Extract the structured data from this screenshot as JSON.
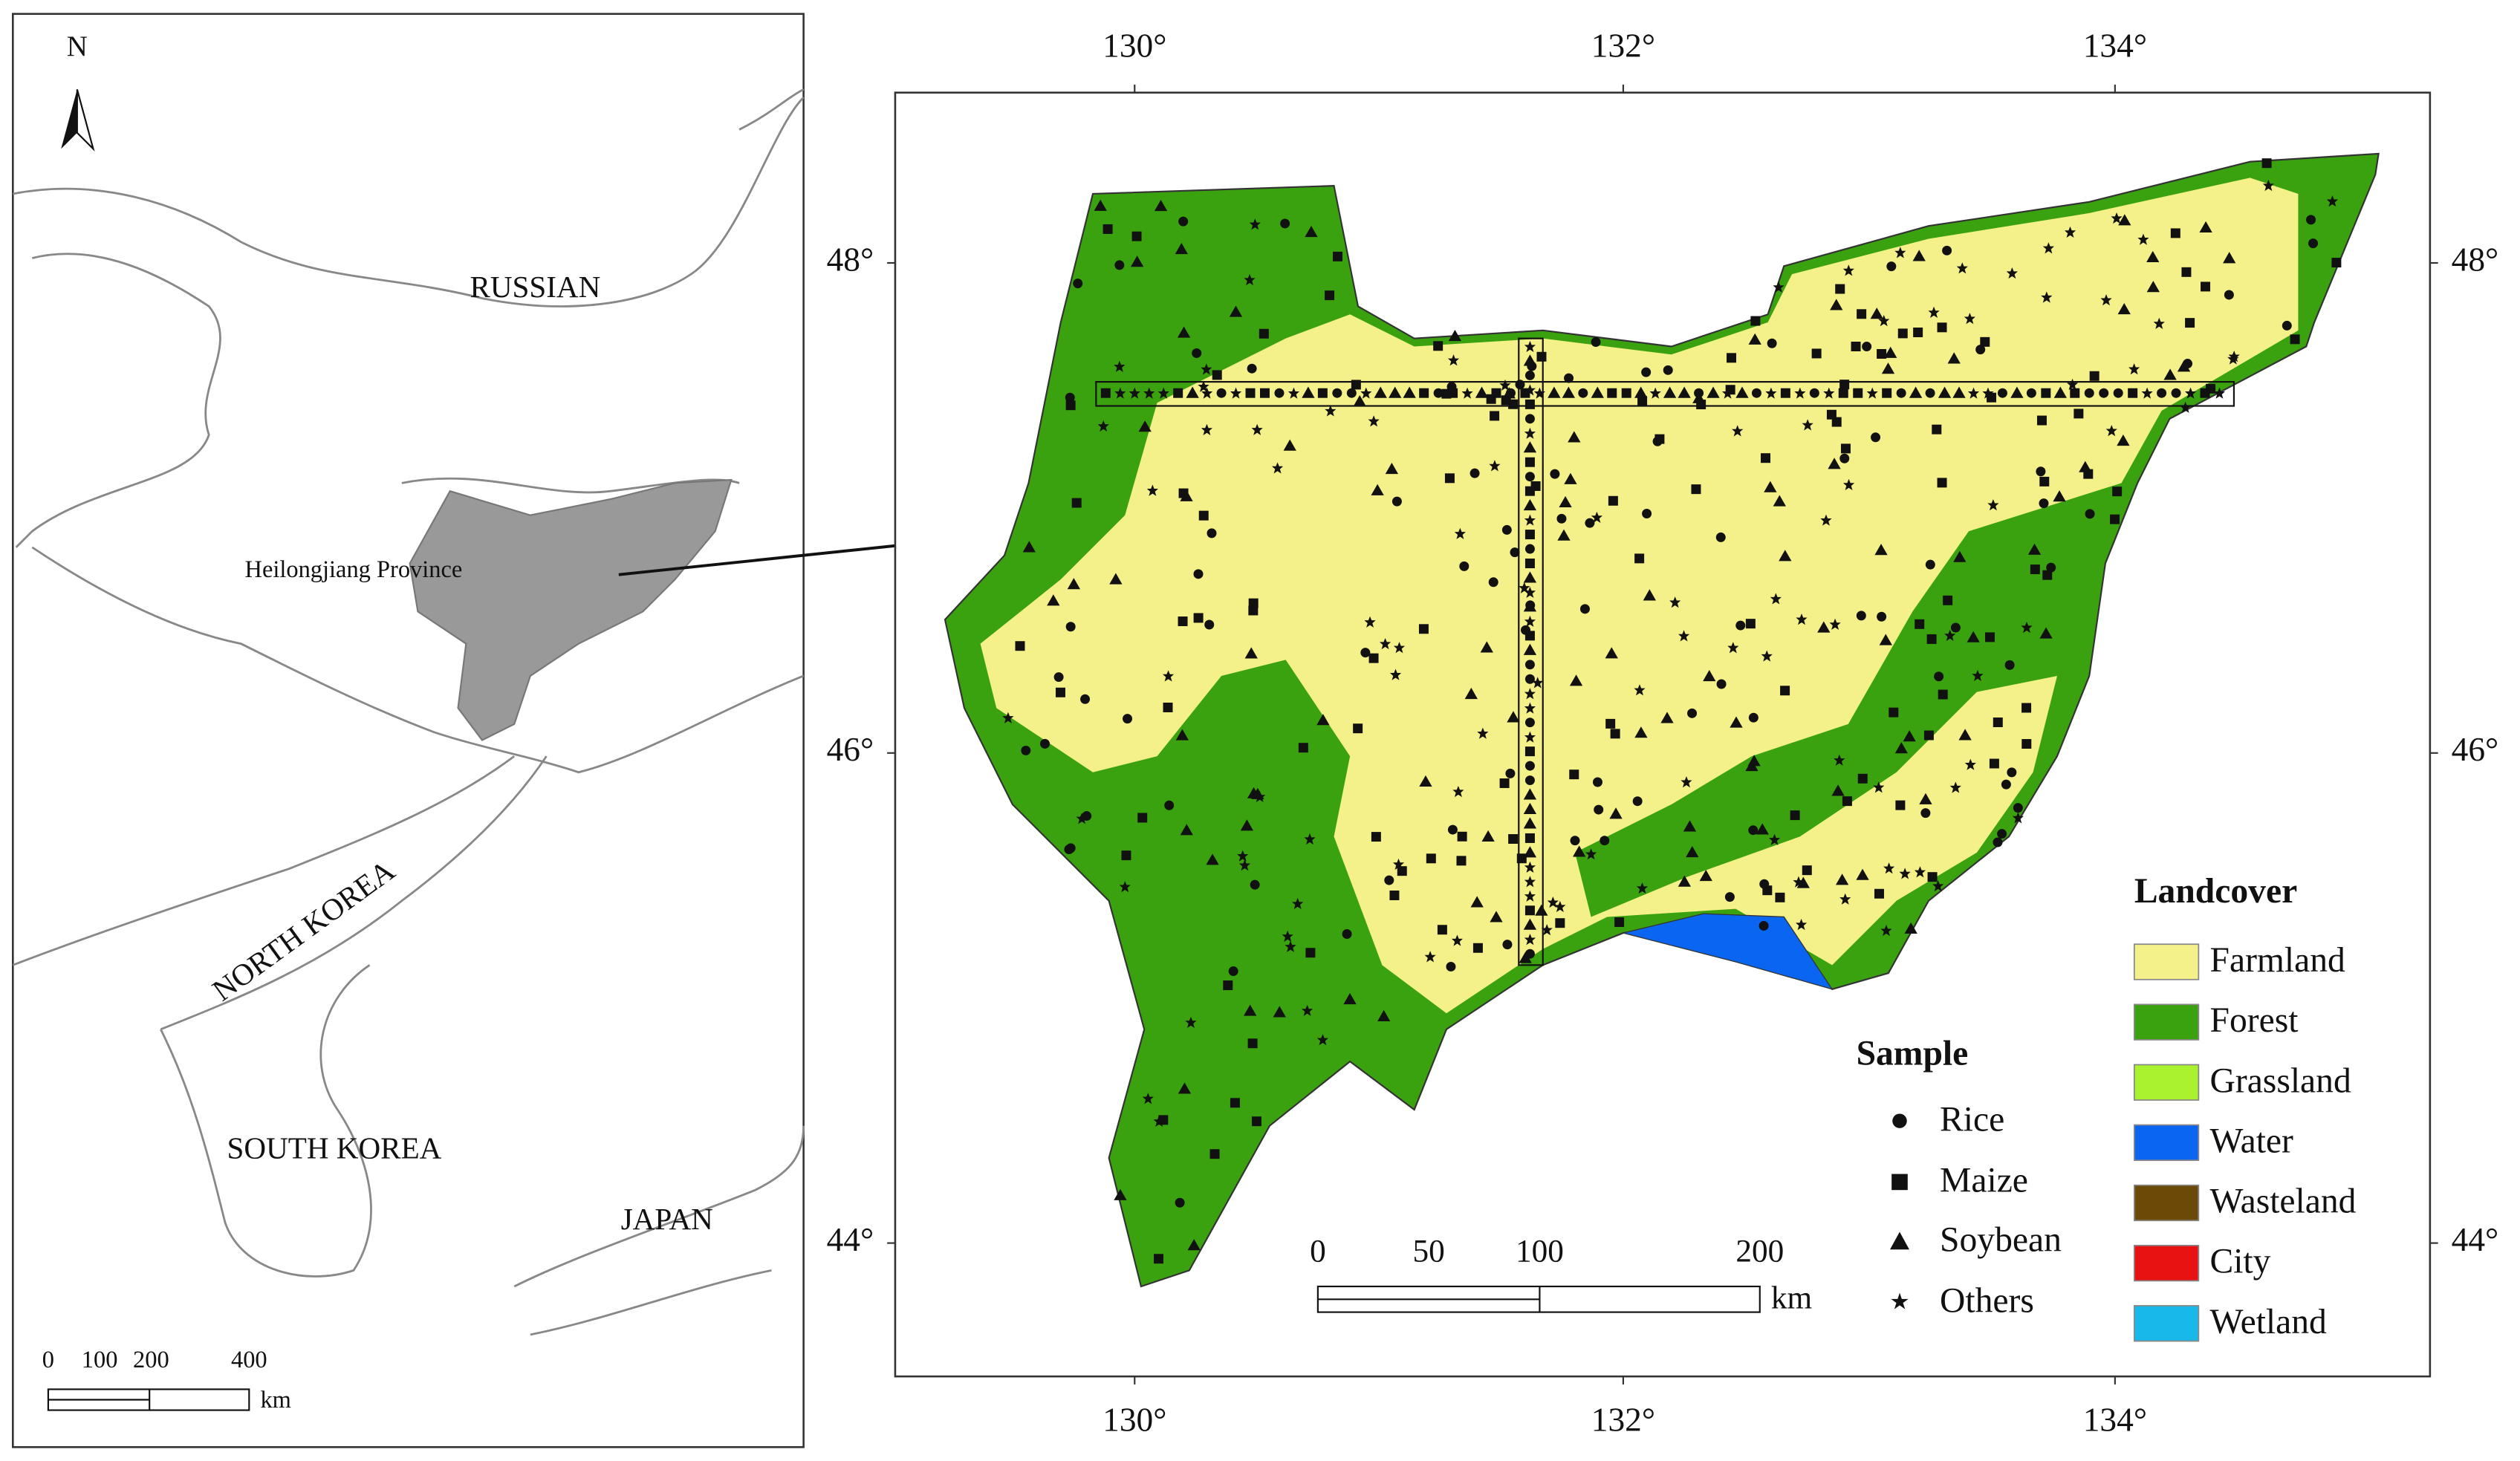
{
  "left_map": {
    "north": "N",
    "labels": {
      "russia": "RUSSIAN",
      "province": "Heilongjiang Province",
      "north_korea": "NORTH KOREA",
      "south_korea": "SOUTH KOREA",
      "japan": "JAPAN"
    },
    "scale": {
      "ticks": [
        0,
        100,
        200,
        400
      ],
      "unit": "km"
    }
  },
  "right_map": {
    "lon_ticks": [
      "130°",
      "132°",
      "134°"
    ],
    "lat_ticks": [
      "48°",
      "46°",
      "44°"
    ],
    "scale": {
      "ticks": [
        0,
        50,
        100,
        200
      ],
      "unit": "km"
    }
  },
  "sample_legend": {
    "title": "Sample",
    "items": [
      "Rice",
      "Maize",
      "Soybean",
      "Others"
    ]
  },
  "landcover_legend": {
    "title": "Landcover",
    "items": [
      {
        "label": "Farmland",
        "color": "#f4f08a"
      },
      {
        "label": "Forest",
        "color": "#3ba20f"
      },
      {
        "label": "Grassland",
        "color": "#aaf22e"
      },
      {
        "label": "Water",
        "color": "#0a66f0"
      },
      {
        "label": "Wasteland",
        "color": "#6b4a08"
      },
      {
        "label": "City",
        "color": "#e81212"
      },
      {
        "label": "Wetland",
        "color": "#18b9ea"
      }
    ]
  }
}
